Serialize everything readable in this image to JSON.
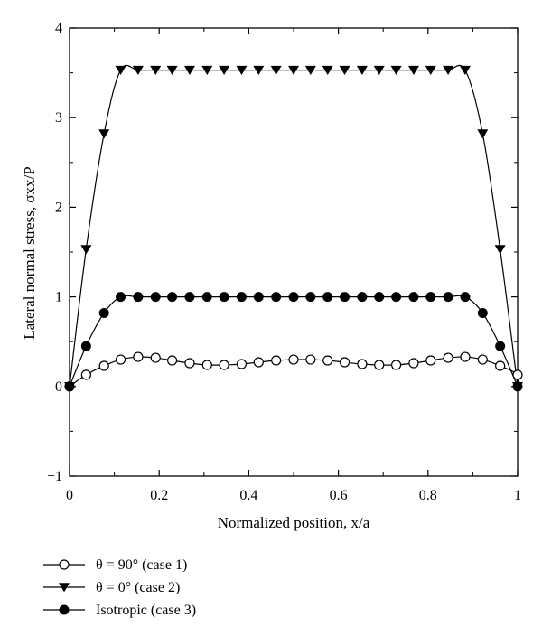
{
  "chart_data": {
    "type": "line",
    "xlabel": "Normalized position, x/a",
    "ylabel": "Lateral normal stress, σxx/P",
    "xlim": [
      0,
      1
    ],
    "ylim": [
      -1,
      4
    ],
    "x_ticks": [
      0,
      0.2,
      0.4,
      0.6,
      0.8,
      1
    ],
    "x_tick_labels": [
      "0",
      "0.2",
      "0.4",
      "0.6",
      "0.8",
      "1"
    ],
    "y_ticks": [
      -1,
      0,
      1,
      2,
      3,
      4
    ],
    "y_tick_labels": [
      "−1",
      "0",
      "1",
      "2",
      "3",
      "4"
    ],
    "grid": false,
    "legend_position": "bottom-left, below plot",
    "series": [
      {
        "name": "θ = 90° (case 1)",
        "marker": "open-circle",
        "x": [
          0,
          0.037,
          0.077,
          0.114,
          0.153,
          0.192,
          0.229,
          0.268,
          0.307,
          0.345,
          0.384,
          0.422,
          0.461,
          0.5,
          0.538,
          0.576,
          0.614,
          0.653,
          0.691,
          0.729,
          0.768,
          0.806,
          0.845,
          0.883,
          0.922,
          0.961,
          1
        ],
        "y": [
          0,
          0.13,
          0.23,
          0.3,
          0.33,
          0.32,
          0.29,
          0.26,
          0.24,
          0.24,
          0.25,
          0.27,
          0.29,
          0.3,
          0.3,
          0.29,
          0.27,
          0.25,
          0.24,
          0.24,
          0.26,
          0.29,
          0.32,
          0.33,
          0.3,
          0.23,
          0.13
        ]
      },
      {
        "name": "θ = 0° (case 2)",
        "marker": "filled-down-triangle",
        "x": [
          0,
          0.037,
          0.077,
          0.114,
          0.153,
          0.192,
          0.229,
          0.268,
          0.307,
          0.345,
          0.384,
          0.422,
          0.461,
          0.5,
          0.538,
          0.576,
          0.614,
          0.653,
          0.691,
          0.729,
          0.768,
          0.806,
          0.845,
          0.883,
          0.922,
          0.961,
          1
        ],
        "y": [
          0,
          1.53,
          2.82,
          3.53,
          3.53,
          3.53,
          3.53,
          3.53,
          3.53,
          3.53,
          3.53,
          3.53,
          3.53,
          3.53,
          3.53,
          3.53,
          3.53,
          3.53,
          3.53,
          3.53,
          3.53,
          3.53,
          3.53,
          3.53,
          2.82,
          1.53,
          0
        ]
      },
      {
        "name": "Isotropic (case 3)",
        "marker": "filled-circle",
        "x": [
          0,
          0.037,
          0.077,
          0.114,
          0.153,
          0.192,
          0.229,
          0.268,
          0.307,
          0.345,
          0.384,
          0.422,
          0.461,
          0.5,
          0.538,
          0.576,
          0.614,
          0.653,
          0.691,
          0.729,
          0.768,
          0.806,
          0.845,
          0.883,
          0.922,
          0.961,
          1
        ],
        "y": [
          0,
          0.45,
          0.82,
          1.0,
          1.0,
          1.0,
          1.0,
          1.0,
          1.0,
          1.0,
          1.0,
          1.0,
          1.0,
          1.0,
          1.0,
          1.0,
          1.0,
          1.0,
          1.0,
          1.0,
          1.0,
          1.0,
          1.0,
          1.0,
          0.82,
          0.45,
          0
        ]
      }
    ]
  }
}
